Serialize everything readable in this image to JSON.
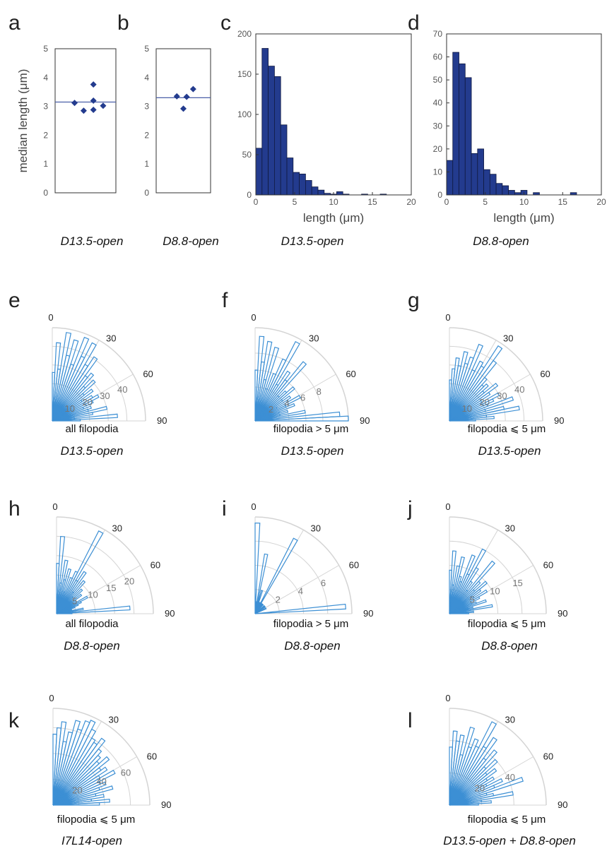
{
  "page": {
    "background": "#ffffff",
    "bar_color": "#233b8e",
    "marker_color": "#233b8e",
    "rose_color": "#3c8fd4",
    "grid_color": "#d4d4d4"
  },
  "chart_data": [
    {
      "id": "a",
      "panel_label": "a",
      "type": "scatter",
      "ylabel": "median length (μm)",
      "caption": "D13.5-open",
      "ylim": [
        0,
        5
      ],
      "yticks": [
        "0",
        "1",
        "2",
        "3",
        "4",
        "5"
      ],
      "points": [
        [
          0.32,
          3.12
        ],
        [
          0.47,
          2.85
        ],
        [
          0.63,
          3.76
        ],
        [
          0.63,
          2.88
        ],
        [
          0.63,
          3.2
        ],
        [
          0.79,
          3.02
        ]
      ],
      "median_line": 3.15
    },
    {
      "id": "b",
      "panel_label": "b",
      "type": "scatter",
      "caption": "D8.8-open",
      "ylim": [
        0,
        5
      ],
      "yticks": [
        "0",
        "1",
        "2",
        "3",
        "4",
        "5"
      ],
      "points": [
        [
          0.38,
          3.35
        ],
        [
          0.5,
          2.92
        ],
        [
          0.56,
          3.33
        ],
        [
          0.68,
          3.6
        ]
      ],
      "median_line": 3.3
    },
    {
      "id": "c",
      "panel_label": "c",
      "type": "bar",
      "xlabel": "length (μm)",
      "caption": "D13.5-open",
      "xlim": [
        0,
        20
      ],
      "ylim": [
        0,
        200
      ],
      "xticks": [
        "0",
        "5",
        "10",
        "15",
        "20"
      ],
      "yticks": [
        "0",
        "50",
        "100",
        "150",
        "200"
      ],
      "bin_width": 0.8,
      "values": [
        58,
        182,
        160,
        147,
        87,
        46,
        28,
        26,
        18,
        10,
        6,
        2,
        1,
        4,
        1,
        0,
        0,
        1,
        0,
        0,
        1,
        0,
        0,
        0,
        0
      ]
    },
    {
      "id": "d",
      "panel_label": "d",
      "type": "bar",
      "xlabel": "length (μm)",
      "caption": "D8.8-open",
      "xlim": [
        0,
        20
      ],
      "ylim": [
        0,
        70
      ],
      "xticks": [
        "0",
        "5",
        "10",
        "15",
        "20"
      ],
      "yticks": [
        "0",
        "10",
        "20",
        "30",
        "40",
        "50",
        "60",
        "70"
      ],
      "bin_width": 0.8,
      "values": [
        15,
        62,
        57,
        51,
        18,
        20,
        11,
        9,
        5,
        4,
        2,
        1,
        2,
        0,
        1,
        0,
        0,
        0,
        0,
        0,
        1,
        0,
        0,
        0,
        0
      ]
    },
    {
      "id": "e",
      "panel_label": "e",
      "type": "rose",
      "caption": "D13.5-open",
      "subcaption": "all filopodia",
      "angle_labels": [
        "0",
        "30",
        "60",
        "90"
      ],
      "rmax": 50,
      "rings": [
        10,
        20,
        30,
        40
      ],
      "ring_labels": [
        "10",
        "20",
        "30",
        "40"
      ],
      "values": [
        26,
        42,
        28,
        48,
        36,
        45,
        32,
        48,
        38,
        47,
        35,
        41,
        30,
        33,
        25,
        31,
        22,
        27,
        19,
        25,
        28,
        24,
        18,
        22,
        20,
        30,
        22,
        12,
        35,
        15
      ]
    },
    {
      "id": "f",
      "panel_label": "f",
      "type": "rose",
      "caption": "D13.5-open",
      "subcaption": "filopodia > 5 μm",
      "angle_labels": [
        "0",
        "30",
        "60",
        "90"
      ],
      "rmax": 11,
      "rings": [
        2,
        4,
        6,
        8
      ],
      "ring_labels": [
        "2",
        "4",
        "6",
        "8"
      ],
      "values": [
        6,
        10,
        7,
        9.5,
        5,
        9,
        4,
        6,
        8,
        10.5,
        5,
        7,
        6,
        9,
        4,
        5,
        6,
        4,
        5,
        3,
        6,
        4,
        5,
        3,
        4,
        3,
        6,
        2,
        10,
        11
      ]
    },
    {
      "id": "g",
      "panel_label": "g",
      "type": "rose",
      "caption": "D13.5-open",
      "subcaption": "filopodia ⩽ 5 μm",
      "angle_labels": [
        "0",
        "30",
        "60",
        "90"
      ],
      "rmax": 50,
      "rings": [
        10,
        20,
        30,
        40
      ],
      "ring_labels": [
        "10",
        "20",
        "30",
        "40"
      ],
      "values": [
        22,
        28,
        34,
        30,
        38,
        32,
        36,
        44,
        30,
        36,
        34,
        48,
        40,
        30,
        26,
        28,
        24,
        32,
        26,
        20,
        30,
        26,
        22,
        36,
        20,
        30,
        38,
        20,
        24,
        14
      ]
    },
    {
      "id": "h",
      "panel_label": "h",
      "type": "rose",
      "caption": "D8.8-open",
      "subcaption": "all filopodia",
      "angle_labels": [
        "0",
        "30",
        "60",
        "90"
      ],
      "rmax": 25,
      "rings": [
        5,
        10,
        15,
        20
      ],
      "ring_labels": [
        "5",
        "10",
        "15",
        "20"
      ],
      "values": [
        13,
        20,
        8,
        14,
        9,
        12,
        6,
        10,
        12,
        24,
        10,
        13,
        7,
        11,
        6,
        9,
        5,
        8,
        6,
        5,
        9,
        7,
        6,
        5,
        4,
        4,
        7,
        3,
        19,
        4
      ]
    },
    {
      "id": "i",
      "panel_label": "i",
      "type": "rose",
      "caption": "D8.8-open",
      "subcaption": "filopodia > 5 μm",
      "angle_labels": [
        "0",
        "30",
        "60",
        "90"
      ],
      "rmax": 8,
      "rings": [
        2,
        4,
        6
      ],
      "ring_labels": [
        "2",
        "4",
        "6"
      ],
      "values": [
        7.5,
        1,
        0,
        5,
        1,
        2,
        0,
        1,
        1,
        7,
        0,
        1,
        0,
        1,
        0,
        0,
        1,
        0,
        1,
        0,
        0,
        1,
        0,
        0,
        0,
        0,
        0,
        0,
        7.5,
        0
      ]
    },
    {
      "id": "j",
      "panel_label": "j",
      "type": "rose",
      "caption": "D8.8-open",
      "subcaption": "filopodia ⩽ 5 μm",
      "angle_labels": [
        "0",
        "30",
        "60",
        "90"
      ],
      "rmax": 20,
      "rings": [
        5,
        10,
        15
      ],
      "ring_labels": [
        "5",
        "10",
        "15"
      ],
      "values": [
        9,
        13,
        6,
        10,
        12,
        8,
        7,
        13,
        9,
        15,
        11,
        8,
        6,
        14,
        9,
        7,
        10,
        8,
        6,
        9,
        7,
        5,
        6,
        8,
        4,
        5,
        9,
        3,
        5,
        4
      ]
    },
    {
      "id": "k",
      "panel_label": "k",
      "type": "rose",
      "caption": "I7L14-open",
      "subcaption": "filopodia ⩽ 5 μm",
      "angle_labels": [
        "0",
        "30",
        "60",
        "90"
      ],
      "rmax": 75,
      "rings": [
        20,
        40,
        60
      ],
      "ring_labels": [
        "20",
        "40",
        "60"
      ],
      "values": [
        55,
        60,
        65,
        50,
        58,
        68,
        62,
        70,
        72,
        66,
        60,
        58,
        64,
        56,
        52,
        48,
        56,
        46,
        50,
        42,
        54,
        40,
        44,
        38,
        48,
        34,
        40,
        30,
        44,
        36
      ]
    },
    {
      "id": "l",
      "panel_label": "l",
      "type": "rose",
      "caption": "D13.5-open + D8.8-open",
      "subcaption": "filopodia ⩽ 5 μm",
      "angle_labels": [
        "0",
        "30",
        "60",
        "90"
      ],
      "rmax": 60,
      "rings": [
        20,
        40
      ],
      "ring_labels": [
        "20",
        "40"
      ],
      "values": [
        36,
        46,
        40,
        44,
        32,
        50,
        38,
        44,
        40,
        58,
        42,
        50,
        36,
        44,
        32,
        40,
        30,
        36,
        28,
        32,
        26,
        36,
        30,
        48,
        24,
        28,
        40,
        20,
        26,
        18
      ]
    }
  ]
}
